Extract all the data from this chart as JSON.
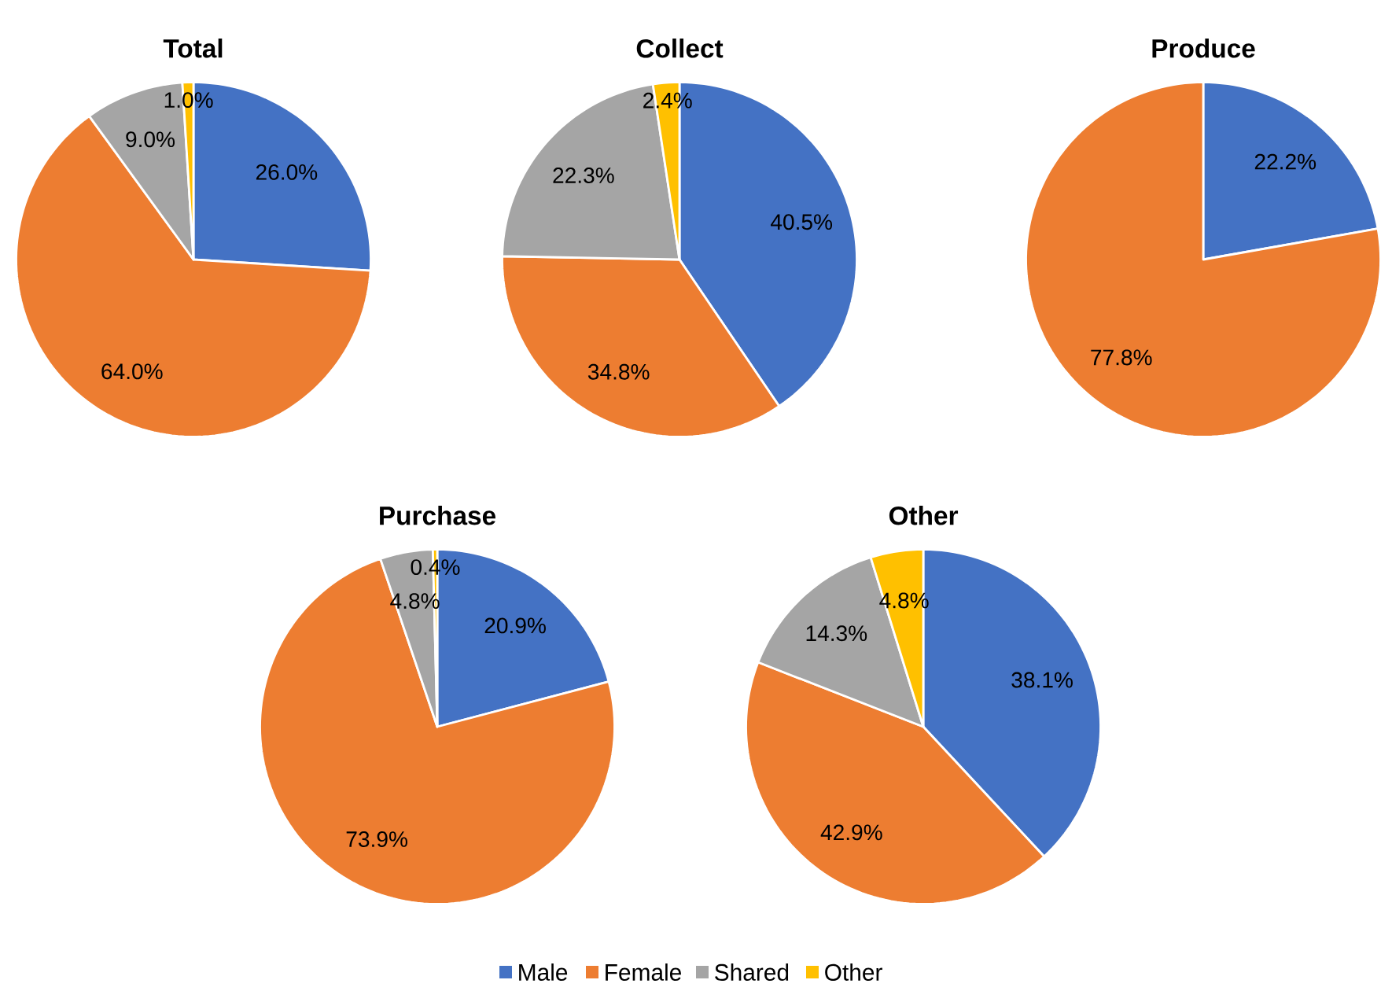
{
  "chart_data": [
    {
      "type": "pie",
      "title": "Total",
      "categories": [
        "Male",
        "Female",
        "Shared",
        "Other"
      ],
      "values": [
        26.0,
        64.0,
        9.0,
        1.0
      ],
      "colors": [
        "#4472c4",
        "#ed7d31",
        "#a5a5a5",
        "#ffc000"
      ],
      "value_labels": [
        "26.0%",
        "64.0%",
        "9.0%",
        "1.0%"
      ],
      "legend": "bottom"
    },
    {
      "type": "pie",
      "title": "Collect",
      "categories": [
        null,
        null,
        null,
        null
      ],
      "values": [
        40.5,
        34.8,
        22.3,
        2.4
      ],
      "colors": [
        "#4472c4",
        "#ed7d31",
        "#a5a5a5",
        "#ffc000"
      ],
      "value_labels": [
        "40.5%",
        "34.8%",
        "22.3%",
        "2.4%"
      ]
    },
    {
      "type": "pie",
      "title": "Produce",
      "categories": [
        null,
        null
      ],
      "values": [
        22.2,
        77.8
      ],
      "colors": [
        "#4472c4",
        "#ed7d31"
      ],
      "value_labels": [
        "22.2%",
        "77.8%"
      ]
    },
    {
      "type": "pie",
      "title": "Purchase",
      "categories": [
        null,
        null,
        null,
        null
      ],
      "values": [
        20.9,
        73.9,
        4.8,
        0.4
      ],
      "colors": [
        "#4472c4",
        "#ed7d31",
        "#a5a5a5",
        "#ffc000"
      ],
      "value_labels": [
        "20.9%",
        "73.9%",
        "4.8%",
        "0.4%"
      ]
    },
    {
      "type": "pie",
      "title": "Other",
      "categories": [
        null,
        null,
        null,
        null
      ],
      "values": [
        38.1,
        42.9,
        14.3,
        4.8
      ],
      "colors": [
        "#4472c4",
        "#ed7d31",
        "#a5a5a5",
        "#ffc000"
      ],
      "value_labels": [
        "38.1%",
        "42.9%",
        "14.3%",
        "4.8%"
      ]
    }
  ]
}
